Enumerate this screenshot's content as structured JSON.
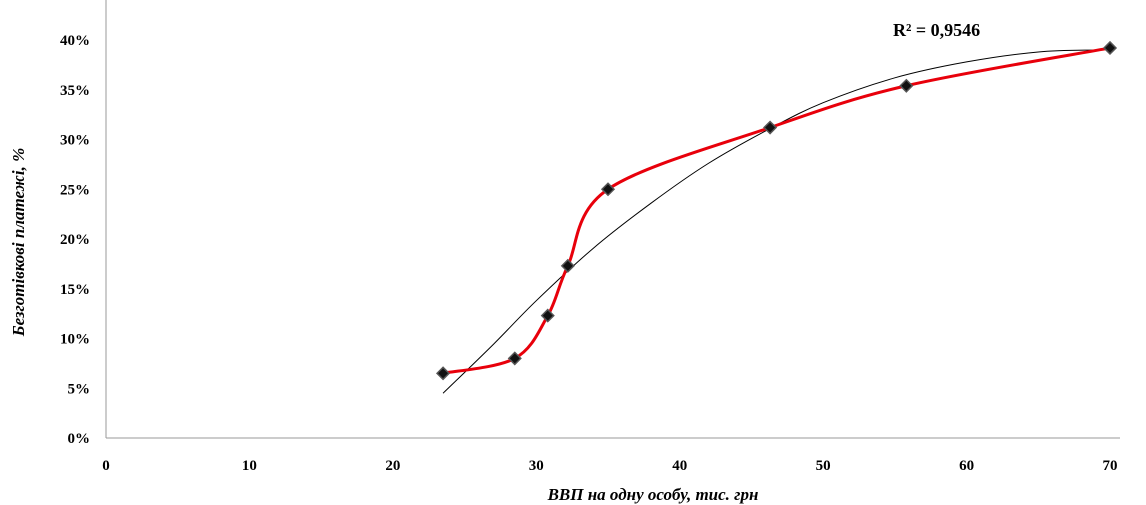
{
  "chart_data": {
    "type": "scatter",
    "title": "",
    "xlabel": "ВВП на одну особу, тис. грн",
    "ylabel": "Безготівкові платежі,  %",
    "xlim": [
      0,
      70
    ],
    "ylim": [
      0,
      40
    ],
    "x_ticks": [
      0,
      10,
      20,
      30,
      40,
      50,
      60,
      70
    ],
    "y_ticks": [
      0,
      5,
      10,
      15,
      20,
      25,
      30,
      35,
      40
    ],
    "x_tick_labels": [
      "0",
      "10",
      "20",
      "30",
      "40",
      "50",
      "60",
      "70"
    ],
    "y_tick_labels": [
      "0%",
      "5%",
      "10%",
      "15%",
      "20%",
      "25%",
      "30%",
      "35%",
      "40%"
    ],
    "grid": false,
    "series": [
      {
        "points": [
          {
            "x": 23.5,
            "y": 6.5
          },
          {
            "x": 28.5,
            "y": 8.0
          },
          {
            "x": 30.8,
            "y": 12.3
          },
          {
            "x": 32.2,
            "y": 17.3
          },
          {
            "x": 35.0,
            "y": 25.0
          },
          {
            "x": 46.3,
            "y": 31.2
          },
          {
            "x": 55.8,
            "y": 35.4
          },
          {
            "x": 70.0,
            "y": 39.2
          }
        ],
        "line": "smooth",
        "line_color": "#e8000b",
        "marker": "diamond",
        "marker_color": "#111111"
      }
    ],
    "trendline": {
      "type": "polynomial",
      "color": "#000000",
      "r_squared_label": "R² = 0,9546",
      "points": [
        {
          "x": 23.5,
          "y": 4.5
        },
        {
          "x": 27.0,
          "y": 9.4
        },
        {
          "x": 30.0,
          "y": 13.8
        },
        {
          "x": 34.0,
          "y": 19.1
        },
        {
          "x": 38.0,
          "y": 23.6
        },
        {
          "x": 42.0,
          "y": 27.6
        },
        {
          "x": 46.3,
          "y": 31.1
        },
        {
          "x": 50.0,
          "y": 33.7
        },
        {
          "x": 55.0,
          "y": 36.2
        },
        {
          "x": 60.0,
          "y": 37.8
        },
        {
          "x": 65.0,
          "y": 38.8
        },
        {
          "x": 69.0,
          "y": 39.0
        }
      ]
    }
  }
}
